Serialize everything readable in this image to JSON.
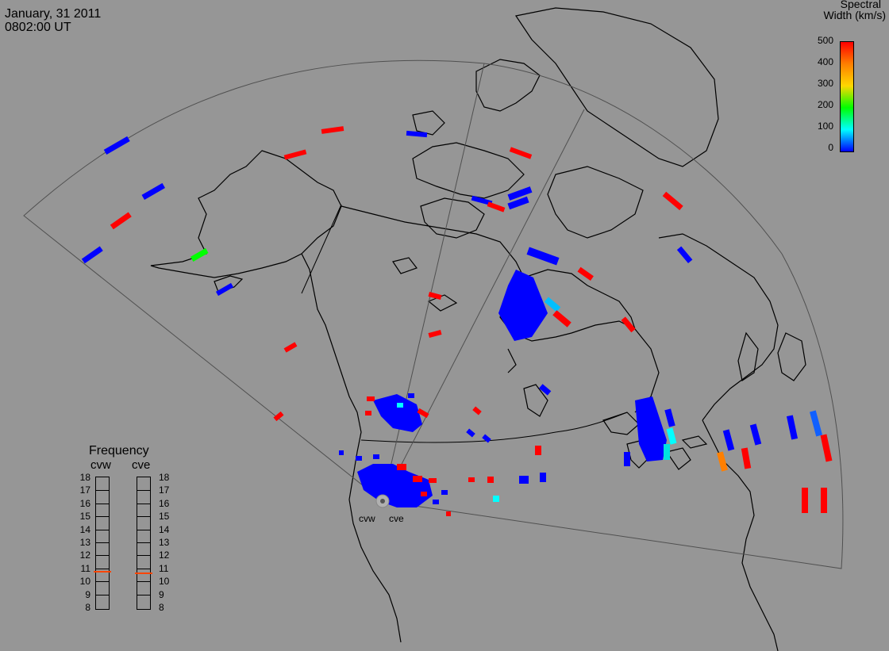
{
  "header": {
    "date": "January, 31 2011",
    "time": "0802:00 UT"
  },
  "colorbar": {
    "title_line1": "Spectral",
    "title_line2": "Width (km/s)",
    "ticks": [
      "500",
      "400",
      "300",
      "200",
      "100",
      "0"
    ],
    "colors": [
      "#ff0000",
      "#ff7f00",
      "#ffd700",
      "#00ff00",
      "#00ffff",
      "#0000ff"
    ]
  },
  "frequency_panel": {
    "title": "Frequency",
    "radars": [
      "cvw",
      "cve"
    ],
    "scale": [
      "18",
      "17",
      "16",
      "15",
      "14",
      "13",
      "12",
      "11",
      "10",
      "9",
      "8"
    ],
    "cvw_value": 10.8,
    "cve_value": 10.7,
    "marker_color": "#ff4500"
  },
  "map": {
    "radar_labels": [
      "cvw",
      "cve"
    ],
    "background": "#969696",
    "coastline_color": "#000000",
    "fov_color": "#505050"
  }
}
